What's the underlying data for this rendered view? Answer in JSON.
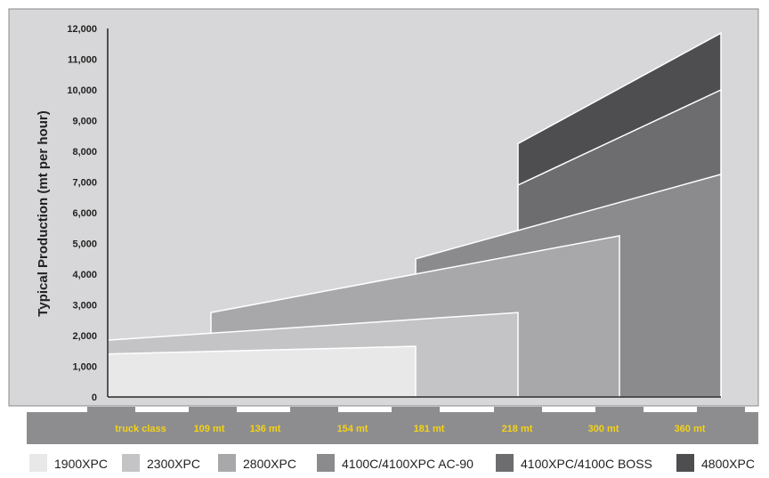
{
  "chart_data": {
    "type": "area",
    "ylabel": "Typical Production (mt per hour)",
    "yticks": [
      "0",
      "1,000",
      "2,000",
      "3,000",
      "4,000",
      "5,000",
      "6,000",
      "7,000",
      "8,000",
      "9,000",
      "10,000",
      "11,000",
      "12,000"
    ],
    "ylim": [
      0,
      12000
    ],
    "xticks": [
      "truck class",
      "109 mt",
      "136 mt",
      "154 mt",
      "181 mt",
      "218 mt",
      "300 mt",
      "360 mt"
    ],
    "grid": false,
    "legend_position": "bottom",
    "series": [
      {
        "name": "1900XPC",
        "color": "#e8e8e8",
        "x": [
          "truck class",
          "181 mt"
        ],
        "y": [
          1400,
          1650
        ]
      },
      {
        "name": "2300XPC",
        "color": "#c4c4c6",
        "x": [
          "truck class",
          "218 mt"
        ],
        "y": [
          1850,
          2750
        ]
      },
      {
        "name": "2800XPC",
        "color": "#a8a8aa",
        "x": [
          "109 mt",
          "300 mt"
        ],
        "y": [
          2750,
          5250
        ]
      },
      {
        "name": "4100C/4100XPC AC-90",
        "color": "#8b8b8d",
        "x": [
          "181 mt",
          "360 mt"
        ],
        "y": [
          4500,
          7250
        ]
      },
      {
        "name": "4100XPC/4100C BOSS",
        "color": "#6d6d6f",
        "x": [
          "218 mt",
          "360 mt"
        ],
        "y": [
          6900,
          10000
        ]
      },
      {
        "name": "4800XPC",
        "color": "#4e4e50",
        "x": [
          "218 mt",
          "360 mt"
        ],
        "y": [
          8250,
          11850
        ]
      }
    ]
  }
}
